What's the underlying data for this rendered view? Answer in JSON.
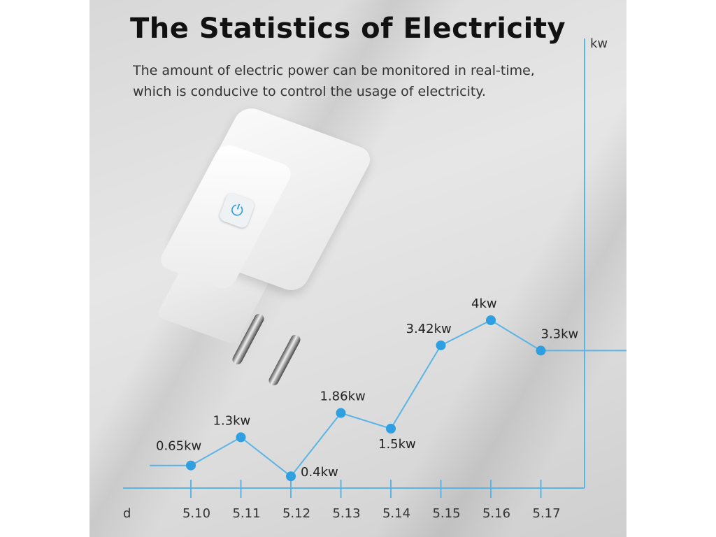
{
  "header": {
    "title": "The Statistics of Electricity",
    "subtitle_line1": "The amount of electric power can be monitored in real-time,",
    "subtitle_line2": "which is conducive to control the usage of electricity."
  },
  "product": {
    "button_icon": "power-icon"
  },
  "colors": {
    "accent": "#2e9fe0",
    "line": "#5ab4e6"
  },
  "chart_data": {
    "type": "line",
    "xlabel": "d",
    "ylabel": "kw",
    "categories": [
      "5.10",
      "5.11",
      "5.12",
      "5.13",
      "5.14",
      "5.15",
      "5.16",
      "5.17"
    ],
    "values": [
      0.65,
      1.3,
      0.4,
      1.86,
      1.5,
      3.42,
      4,
      3.3
    ],
    "data_labels": [
      "0.65kw",
      "1.3kw",
      "0.4kw",
      "1.86kw",
      "1.5kw",
      "3.42kw",
      "4kw",
      "3.3kw"
    ],
    "ylim": [
      0,
      4.5
    ],
    "grid": false
  }
}
